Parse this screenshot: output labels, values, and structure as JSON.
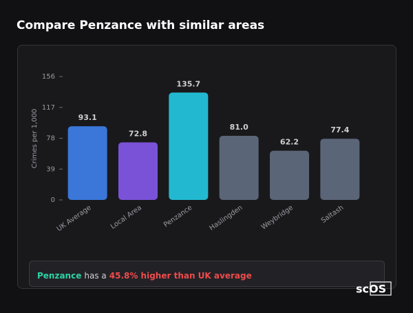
{
  "chart_data": {
    "type": "bar",
    "title": "Compare Penzance with similar areas",
    "y_label": "Crimes per 1,000",
    "categories": [
      "UK Average",
      "Local Area",
      "Penzance",
      "Haslingden",
      "Weybridge",
      "Saltash"
    ],
    "values": [
      93.1,
      72.8,
      135.7,
      81.0,
      62.2,
      77.4
    ],
    "value_labels": [
      "93.1",
      "72.8",
      "135.7",
      "81.0",
      "62.2",
      "77.4"
    ],
    "colors": [
      "#3a77d9",
      "#7a52d8",
      "#22b9d0",
      "#5b6578",
      "#5b6578",
      "#5b6578"
    ],
    "ylim": [
      0,
      156
    ],
    "yticks": [
      0,
      39,
      78,
      117,
      156
    ]
  },
  "note": {
    "area": "Penzance",
    "text": "has a",
    "highlight": "45.8% higher than UK average"
  },
  "logo": "scOS"
}
